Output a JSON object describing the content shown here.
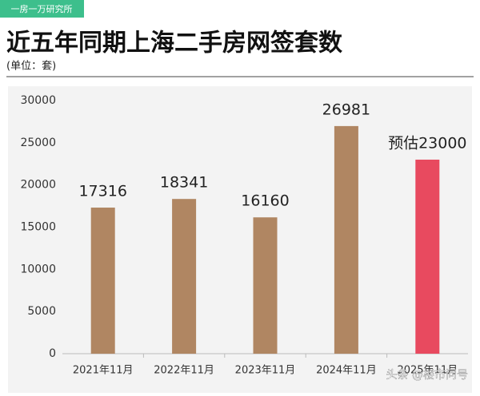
{
  "header": {
    "tag": "一房一万研究所",
    "title": "近五年同期上海二手房网签套数",
    "unit": "(单位：套)"
  },
  "chart_data": {
    "type": "bar",
    "categories": [
      "2021年11月",
      "2022年11月",
      "2023年11月",
      "2024年11月",
      "2025年11月"
    ],
    "values": [
      17316,
      18341,
      16160,
      26981,
      23000
    ],
    "value_labels": [
      "17316",
      "18341",
      "16160",
      "26981",
      "预估23000"
    ],
    "colors": [
      "#b08662",
      "#b08662",
      "#b08662",
      "#b08662",
      "#e84a5f"
    ],
    "ylim": [
      0,
      30000
    ],
    "yticks": [
      0,
      5000,
      10000,
      15000,
      20000,
      25000,
      30000
    ],
    "grid": false
  },
  "watermark": "头条 @楼市问号"
}
